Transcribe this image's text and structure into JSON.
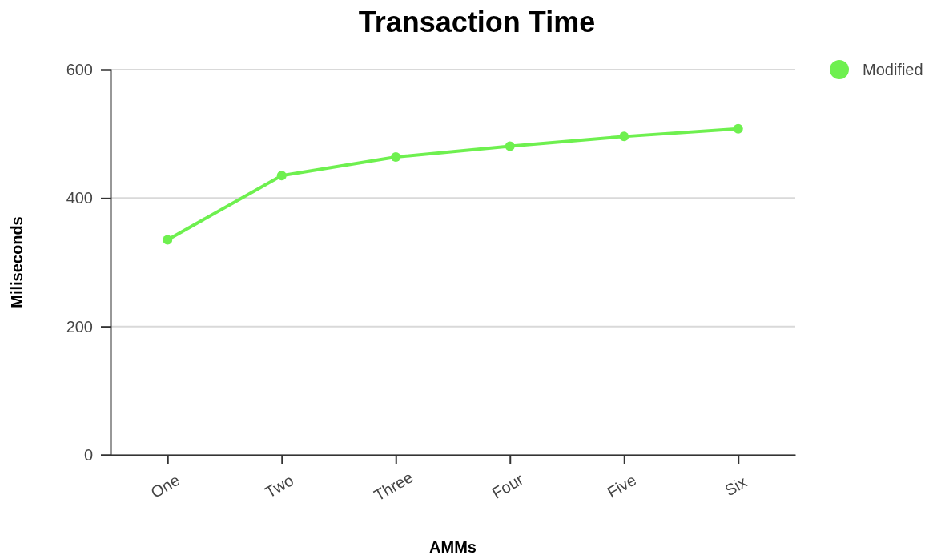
{
  "chart_data": {
    "type": "line",
    "title": "Transaction Time",
    "xlabel": "AMMs",
    "ylabel": "Miliseconds",
    "categories": [
      "One",
      "Two",
      "Three",
      "Four",
      "Five",
      "Six"
    ],
    "series": [
      {
        "name": "Modified",
        "color": "#6ef04f",
        "values": [
          335,
          435,
          464,
          481,
          496,
          508
        ]
      }
    ],
    "ylim": [
      0,
      600
    ],
    "yticks": [
      0,
      200,
      400,
      600
    ],
    "grid": "y",
    "legend": "top right",
    "marker": "circle",
    "line_style": "solid"
  }
}
